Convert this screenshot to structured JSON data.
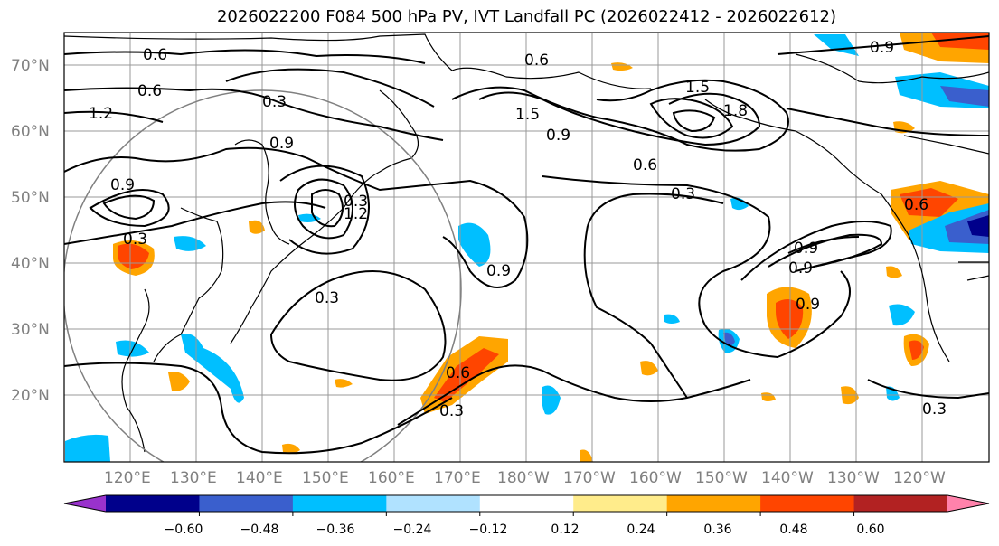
{
  "title": "2026022200 F084 500 hPa PV, IVT Landfall PC (2026022412 - 2026022612)",
  "map": {
    "lat_labels": [
      "70°N",
      "60°N",
      "50°N",
      "40°N",
      "30°N",
      "20°N"
    ],
    "lon_labels": [
      "120°E",
      "130°E",
      "140°E",
      "150°E",
      "160°E",
      "170°E",
      "180°W",
      "170°W",
      "160°W",
      "150°W",
      "140°W",
      "130°W",
      "120°W"
    ],
    "contour_labels": [
      "0.6",
      "0.6",
      "1.2",
      "0.3",
      "0.9",
      "0.9",
      "0.3",
      "0.3",
      "1.2",
      "0.9",
      "0.3",
      "0.6",
      "0.3",
      "1.5",
      "1.5",
      "0.9",
      "0.6",
      "1.8",
      "0.3",
      "0.9",
      "0.6",
      "0.9",
      "0.9",
      "0.3",
      "0.9",
      "0.6"
    ]
  },
  "colorbar": {
    "tick_labels": [
      "−0.60",
      "−0.48",
      "−0.36",
      "−0.24",
      "−0.12",
      "0.12",
      "0.24",
      "0.36",
      "0.48",
      "0.60"
    ],
    "colors": [
      "#9932CC",
      "#00008B",
      "#3A5FCD",
      "#00BFFF",
      "#B0E2FF",
      "#FFFFFF",
      "#FFEC8B",
      "#FFA500",
      "#FF4500",
      "#B22222",
      "#FF82AB"
    ]
  }
}
